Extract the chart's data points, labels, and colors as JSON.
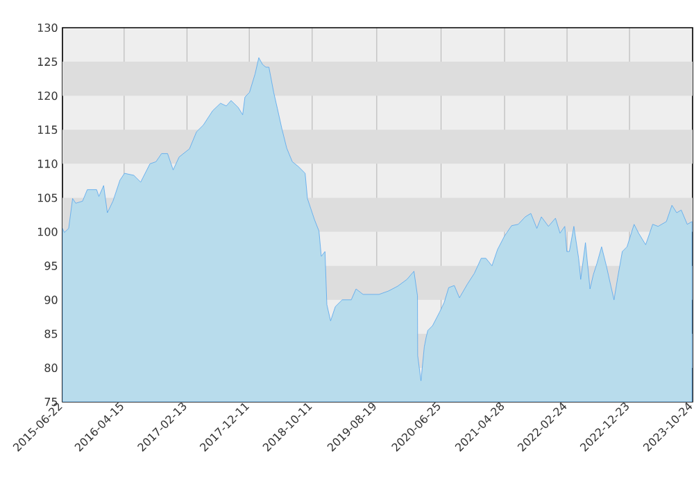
{
  "chart_data": {
    "type": "area",
    "xlim": [
      "2015-06-22",
      "2023-10-24"
    ],
    "ylim": [
      75,
      130
    ],
    "xticks": [
      "2015-06-22",
      "2016-04-15",
      "2017-02-13",
      "2017-12-11",
      "2018-10-11",
      "2019-08-19",
      "2020-06-25",
      "2021-04-28",
      "2022-02-24",
      "2022-12-23",
      "2023-10-24"
    ],
    "yticks": [
      75,
      80,
      85,
      90,
      95,
      100,
      105,
      110,
      115,
      120,
      125,
      130
    ],
    "grid": "x",
    "bands": [
      {
        "axis": "y",
        "from": 80,
        "to": 85,
        "color": "#dddddd"
      },
      {
        "axis": "y",
        "from": 90,
        "to": 95,
        "color": "#dddddd"
      },
      {
        "axis": "y",
        "from": 100,
        "to": 105,
        "color": "#dddddd"
      },
      {
        "axis": "y",
        "from": 110,
        "to": 115,
        "color": "#dddddd"
      },
      {
        "axis": "y",
        "from": 120,
        "to": 125,
        "color": "#dddddd"
      }
    ],
    "series": [
      {
        "color": "#b8dcec",
        "x": [
          "2015-06-22",
          "2015-07-01",
          "2015-07-22",
          "2015-08-10",
          "2015-08-25",
          "2015-09-27",
          "2015-10-20",
          "2015-12-04",
          "2015-12-15",
          "2016-01-07",
          "2016-01-25",
          "2016-02-21",
          "2016-03-26",
          "2016-04-17",
          "2016-06-01",
          "2016-07-04",
          "2016-08-18",
          "2016-09-16",
          "2016-10-13",
          "2016-11-11",
          "2016-12-08",
          "2017-01-06",
          "2017-02-25",
          "2017-03-31",
          "2017-05-03",
          "2017-06-17",
          "2017-07-25",
          "2017-08-22",
          "2017-09-14",
          "2017-10-18",
          "2017-11-09",
          "2017-11-20",
          "2017-12-12",
          "2018-01-08",
          "2018-01-26",
          "2018-02-13",
          "2018-03-01",
          "2018-03-16",
          "2018-04-08",
          "2018-04-26",
          "2018-05-18",
          "2018-06-10",
          "2018-07-07",
          "2018-08-05",
          "2018-09-07",
          "2018-09-18",
          "2018-10-22",
          "2018-11-13",
          "2018-11-24",
          "2018-12-12",
          "2018-12-21",
          "2019-01-08",
          "2019-01-31",
          "2019-03-05",
          "2019-04-18",
          "2019-05-11",
          "2019-06-14",
          "2019-08-30",
          "2019-10-15",
          "2019-11-28",
          "2020-01-12",
          "2020-02-15",
          "2020-03-03",
          "2020-03-04",
          "2020-03-20",
          "2020-04-05",
          "2020-04-14",
          "2020-04-22",
          "2020-05-15",
          "2020-06-18",
          "2020-07-10",
          "2020-08-01",
          "2020-08-28",
          "2020-09-22",
          "2020-10-30",
          "2020-12-03",
          "2021-01-05",
          "2021-01-28",
          "2021-02-26",
          "2021-03-25",
          "2021-04-28",
          "2021-06-01",
          "2021-07-03",
          "2021-08-06",
          "2021-09-02",
          "2021-10-01",
          "2021-10-23",
          "2021-11-26",
          "2021-12-30",
          "2022-01-21",
          "2022-02-13",
          "2022-02-23",
          "2022-03-07",
          "2022-03-29",
          "2022-04-21",
          "2022-05-01",
          "2022-05-24",
          "2022-06-15",
          "2022-07-01",
          "2022-07-19",
          "2022-08-10",
          "2022-09-02",
          "2022-09-24",
          "2022-10-09",
          "2022-10-27",
          "2022-11-18",
          "2022-12-11",
          "2023-01-14",
          "2023-02-05",
          "2023-03-11",
          "2023-04-14",
          "2023-05-10",
          "2023-06-19",
          "2023-07-16",
          "2023-08-08",
          "2023-08-30",
          "2023-09-28",
          "2023-10-21"
        ],
        "values": [
          100.5,
          99.9,
          100.5,
          104.9,
          104.2,
          104.5,
          106.2,
          106.2,
          105.2,
          106.8,
          102.8,
          104.5,
          107.6,
          108.6,
          108.3,
          107.3,
          110.0,
          110.3,
          111.5,
          111.5,
          109.1,
          111.0,
          112.2,
          114.7,
          115.7,
          117.8,
          118.9,
          118.5,
          119.3,
          118.3,
          117.2,
          119.8,
          120.5,
          123.2,
          125.6,
          124.6,
          124.2,
          124.2,
          120.5,
          118.1,
          115.1,
          112.3,
          110.3,
          109.6,
          108.6,
          104.9,
          101.8,
          100.1,
          96.4,
          97.1,
          89.3,
          86.9,
          89.0,
          90.0,
          90.0,
          91.6,
          90.8,
          90.8,
          91.3,
          92.0,
          93.0,
          94.2,
          90.6,
          81.8,
          78.1,
          83.1,
          84.5,
          85.5,
          86.2,
          88.2,
          89.6,
          91.8,
          92.1,
          90.3,
          92.3,
          93.9,
          96.1,
          96.1,
          95.0,
          97.4,
          99.4,
          100.9,
          101.1,
          102.2,
          102.7,
          100.5,
          102.2,
          100.8,
          102.0,
          99.8,
          100.8,
          97.1,
          97.1,
          100.8,
          96.1,
          93.0,
          98.4,
          91.6,
          93.7,
          95.4,
          97.8,
          95.0,
          92.0,
          90.0,
          93.3,
          97.1,
          97.8,
          101.1,
          99.8,
          98.1,
          101.1,
          100.8,
          101.5,
          103.9,
          102.8,
          103.2,
          101.1,
          101.5
        ]
      }
    ]
  }
}
